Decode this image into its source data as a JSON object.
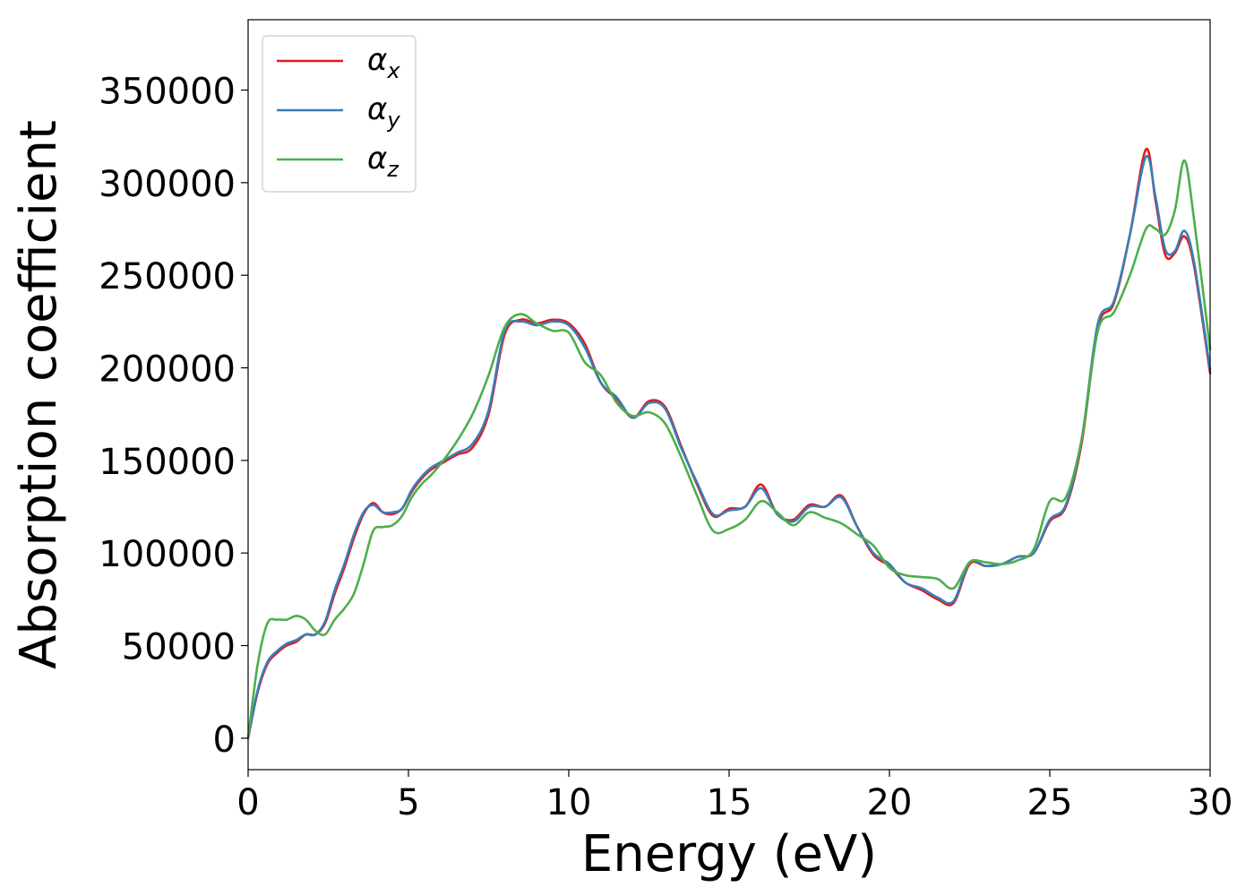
{
  "chart_data": {
    "type": "line",
    "xlabel": "Energy (eV)",
    "ylabel": "Absorption coefficient",
    "xlim": [
      0,
      30
    ],
    "ylim": [
      -17000,
      388000
    ],
    "xticks": [
      0,
      5,
      10,
      15,
      20,
      25,
      30
    ],
    "yticks": [
      0,
      50000,
      100000,
      150000,
      200000,
      250000,
      300000,
      350000
    ],
    "xtick_labels": [
      "0",
      "5",
      "10",
      "15",
      "20",
      "25",
      "30"
    ],
    "ytick_labels": [
      "0",
      "50000",
      "100000",
      "150000",
      "200000",
      "250000",
      "300000",
      "350000"
    ],
    "grid": false,
    "legend_position": "top-left",
    "x": [
      0,
      0.3,
      0.6,
      0.9,
      1.2,
      1.5,
      1.8,
      2.1,
      2.4,
      2.7,
      3.0,
      3.3,
      3.6,
      3.9,
      4.2,
      4.5,
      4.8,
      5.1,
      5.4,
      5.7,
      6.0,
      6.5,
      7.0,
      7.5,
      8.0,
      8.5,
      9.0,
      9.5,
      10.0,
      10.5,
      11.0,
      11.5,
      12.0,
      12.5,
      13.0,
      13.5,
      14.0,
      14.5,
      15.0,
      15.5,
      16.0,
      16.5,
      17.0,
      17.5,
      18.0,
      18.5,
      19.0,
      19.5,
      20.0,
      20.5,
      21.0,
      21.5,
      22.0,
      22.5,
      23.0,
      23.5,
      24.0,
      24.5,
      25.0,
      25.5,
      26.0,
      26.5,
      27.0,
      27.5,
      28.0,
      28.3,
      28.6,
      28.9,
      29.2,
      29.5,
      30.0
    ],
    "series": [
      {
        "name": "α",
        "subscript": "x",
        "color": "#e41a1c",
        "values": [
          0,
          25000,
          40000,
          46000,
          50000,
          52000,
          56000,
          56000,
          62000,
          78000,
          92000,
          108000,
          121000,
          127000,
          122000,
          121000,
          124000,
          133000,
          140000,
          145000,
          148000,
          153000,
          157000,
          175000,
          218000,
          226000,
          224000,
          226000,
          224000,
          213000,
          192000,
          183000,
          173000,
          182000,
          179000,
          158000,
          137000,
          120000,
          124000,
          125000,
          137000,
          121000,
          118000,
          126000,
          125000,
          131000,
          114000,
          99000,
          93000,
          84000,
          80000,
          75000,
          73000,
          94000,
          93000,
          94000,
          98000,
          100000,
          117000,
          125000,
          160000,
          222000,
          235000,
          272000,
          318000,
          290000,
          261000,
          262000,
          271000,
          255000,
          197000
        ]
      },
      {
        "name": "α",
        "subscript": "y",
        "color": "#377eb8",
        "values": [
          0,
          26000,
          41000,
          47000,
          51000,
          53000,
          56000,
          56000,
          63000,
          80000,
          94000,
          110000,
          122000,
          126000,
          122000,
          122000,
          124000,
          134000,
          141000,
          146000,
          149000,
          154000,
          159000,
          177000,
          220000,
          225000,
          223000,
          225000,
          223000,
          211000,
          192000,
          184000,
          173000,
          181000,
          178000,
          157000,
          138000,
          121000,
          123000,
          125000,
          135000,
          121000,
          117000,
          125000,
          125000,
          130000,
          114000,
          100000,
          94000,
          84000,
          81000,
          76000,
          74000,
          95000,
          93000,
          94000,
          98000,
          100000,
          118000,
          126000,
          162000,
          224000,
          236000,
          272000,
          314000,
          292000,
          264000,
          263000,
          274000,
          257000,
          199000
        ]
      },
      {
        "name": "α",
        "subscript": "z",
        "color": "#4daf4a",
        "values": [
          0,
          40000,
          62000,
          64000,
          64000,
          66000,
          64000,
          58000,
          56000,
          64000,
          70000,
          78000,
          94000,
          112000,
          114000,
          115000,
          120000,
          130000,
          137000,
          142000,
          148000,
          160000,
          175000,
          196000,
          222000,
          229000,
          224000,
          220000,
          219000,
          203000,
          196000,
          181000,
          174000,
          176000,
          170000,
          152000,
          131000,
          112000,
          113000,
          118000,
          128000,
          122000,
          115000,
          122000,
          119000,
          116000,
          110000,
          104000,
          92000,
          88000,
          87000,
          86000,
          81000,
          95000,
          95000,
          94000,
          96000,
          102000,
          128000,
          130000,
          162000,
          220000,
          230000,
          250000,
          275000,
          275000,
          272000,
          285000,
          312000,
          280000,
          210000
        ]
      }
    ]
  }
}
